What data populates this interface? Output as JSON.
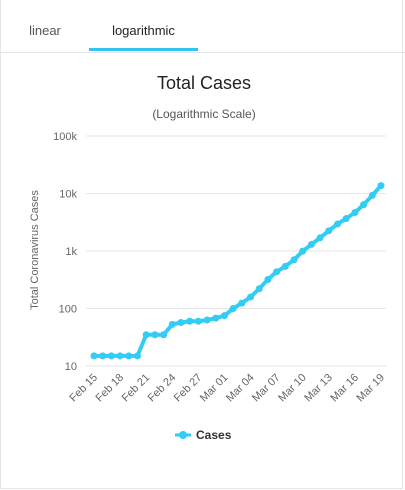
{
  "tabs": [
    {
      "label": "linear",
      "active": false
    },
    {
      "label": "logarithmic",
      "active": true
    }
  ],
  "colors": {
    "series": "#33ccf5",
    "tab_active": "#33c3f0",
    "grid": "#e6e6e6",
    "text": "#222222",
    "axis_text": "#666666"
  },
  "chart_data": {
    "type": "line",
    "title": "Total Cases",
    "subtitle": "(Logarithmic Scale)",
    "ylabel": "Total Coronavirus Cases",
    "xlabel": "",
    "y_scale": "log",
    "ylim": [
      10,
      100000
    ],
    "y_ticks": [
      10,
      100,
      1000,
      10000,
      100000
    ],
    "y_tick_labels": [
      "10",
      "100",
      "1k",
      "10k",
      "100k"
    ],
    "x_tick_labels": [
      "Feb 15",
      "Feb 18",
      "Feb 21",
      "Feb 24",
      "Feb 27",
      "Mar 01",
      "Mar 04",
      "Mar 07",
      "Mar 10",
      "Mar 13",
      "Mar 16",
      "Mar 19"
    ],
    "x": [
      "Feb 15",
      "Feb 16",
      "Feb 17",
      "Feb 18",
      "Feb 19",
      "Feb 20",
      "Feb 21",
      "Feb 22",
      "Feb 23",
      "Feb 24",
      "Feb 25",
      "Feb 26",
      "Feb 27",
      "Feb 28",
      "Feb 29",
      "Mar 01",
      "Mar 02",
      "Mar 03",
      "Mar 04",
      "Mar 05",
      "Mar 06",
      "Mar 07",
      "Mar 08",
      "Mar 09",
      "Mar 10",
      "Mar 11",
      "Mar 12",
      "Mar 13",
      "Mar 14",
      "Mar 15",
      "Mar 16",
      "Mar 17",
      "Mar 18",
      "Mar 19"
    ],
    "series": [
      {
        "name": "Cases",
        "values": [
          15,
          15,
          15,
          15,
          15,
          15,
          35,
          35,
          35,
          53,
          57,
          60,
          60,
          63,
          68,
          75,
          100,
          124,
          158,
          221,
          319,
          435,
          541,
          704,
          994,
          1301,
          1697,
          2247,
          2943,
          3680,
          4663,
          6411,
          9259,
          13716
        ]
      }
    ],
    "legend": "bottom-center",
    "grid": true
  }
}
